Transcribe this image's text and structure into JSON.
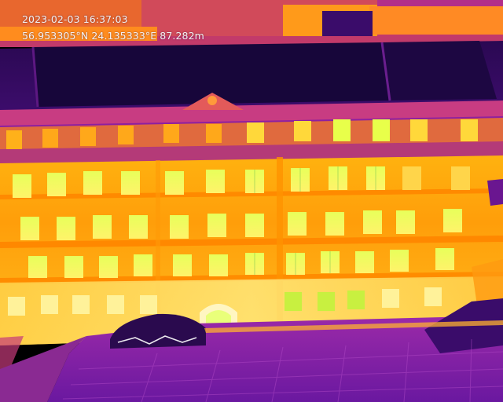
{
  "overlay": {
    "timestamp": "2023-02-03 16:37:03",
    "gps_readout": "56.953305°N 24.135333°E 87.282m"
  },
  "image": {
    "description_type": "thermal-infrared-aerial",
    "palette": {
      "hot_white": "#fffbe0",
      "hot_yellow": "#ffe633",
      "warm_orange": "#ffa20d",
      "warm_deep": "#ff8400",
      "mid_magenta": "#d12c8a",
      "cool_purple": "#8a1ca8",
      "cold_indigo": "#3d0b68",
      "coldest": "#1a0636"
    }
  }
}
